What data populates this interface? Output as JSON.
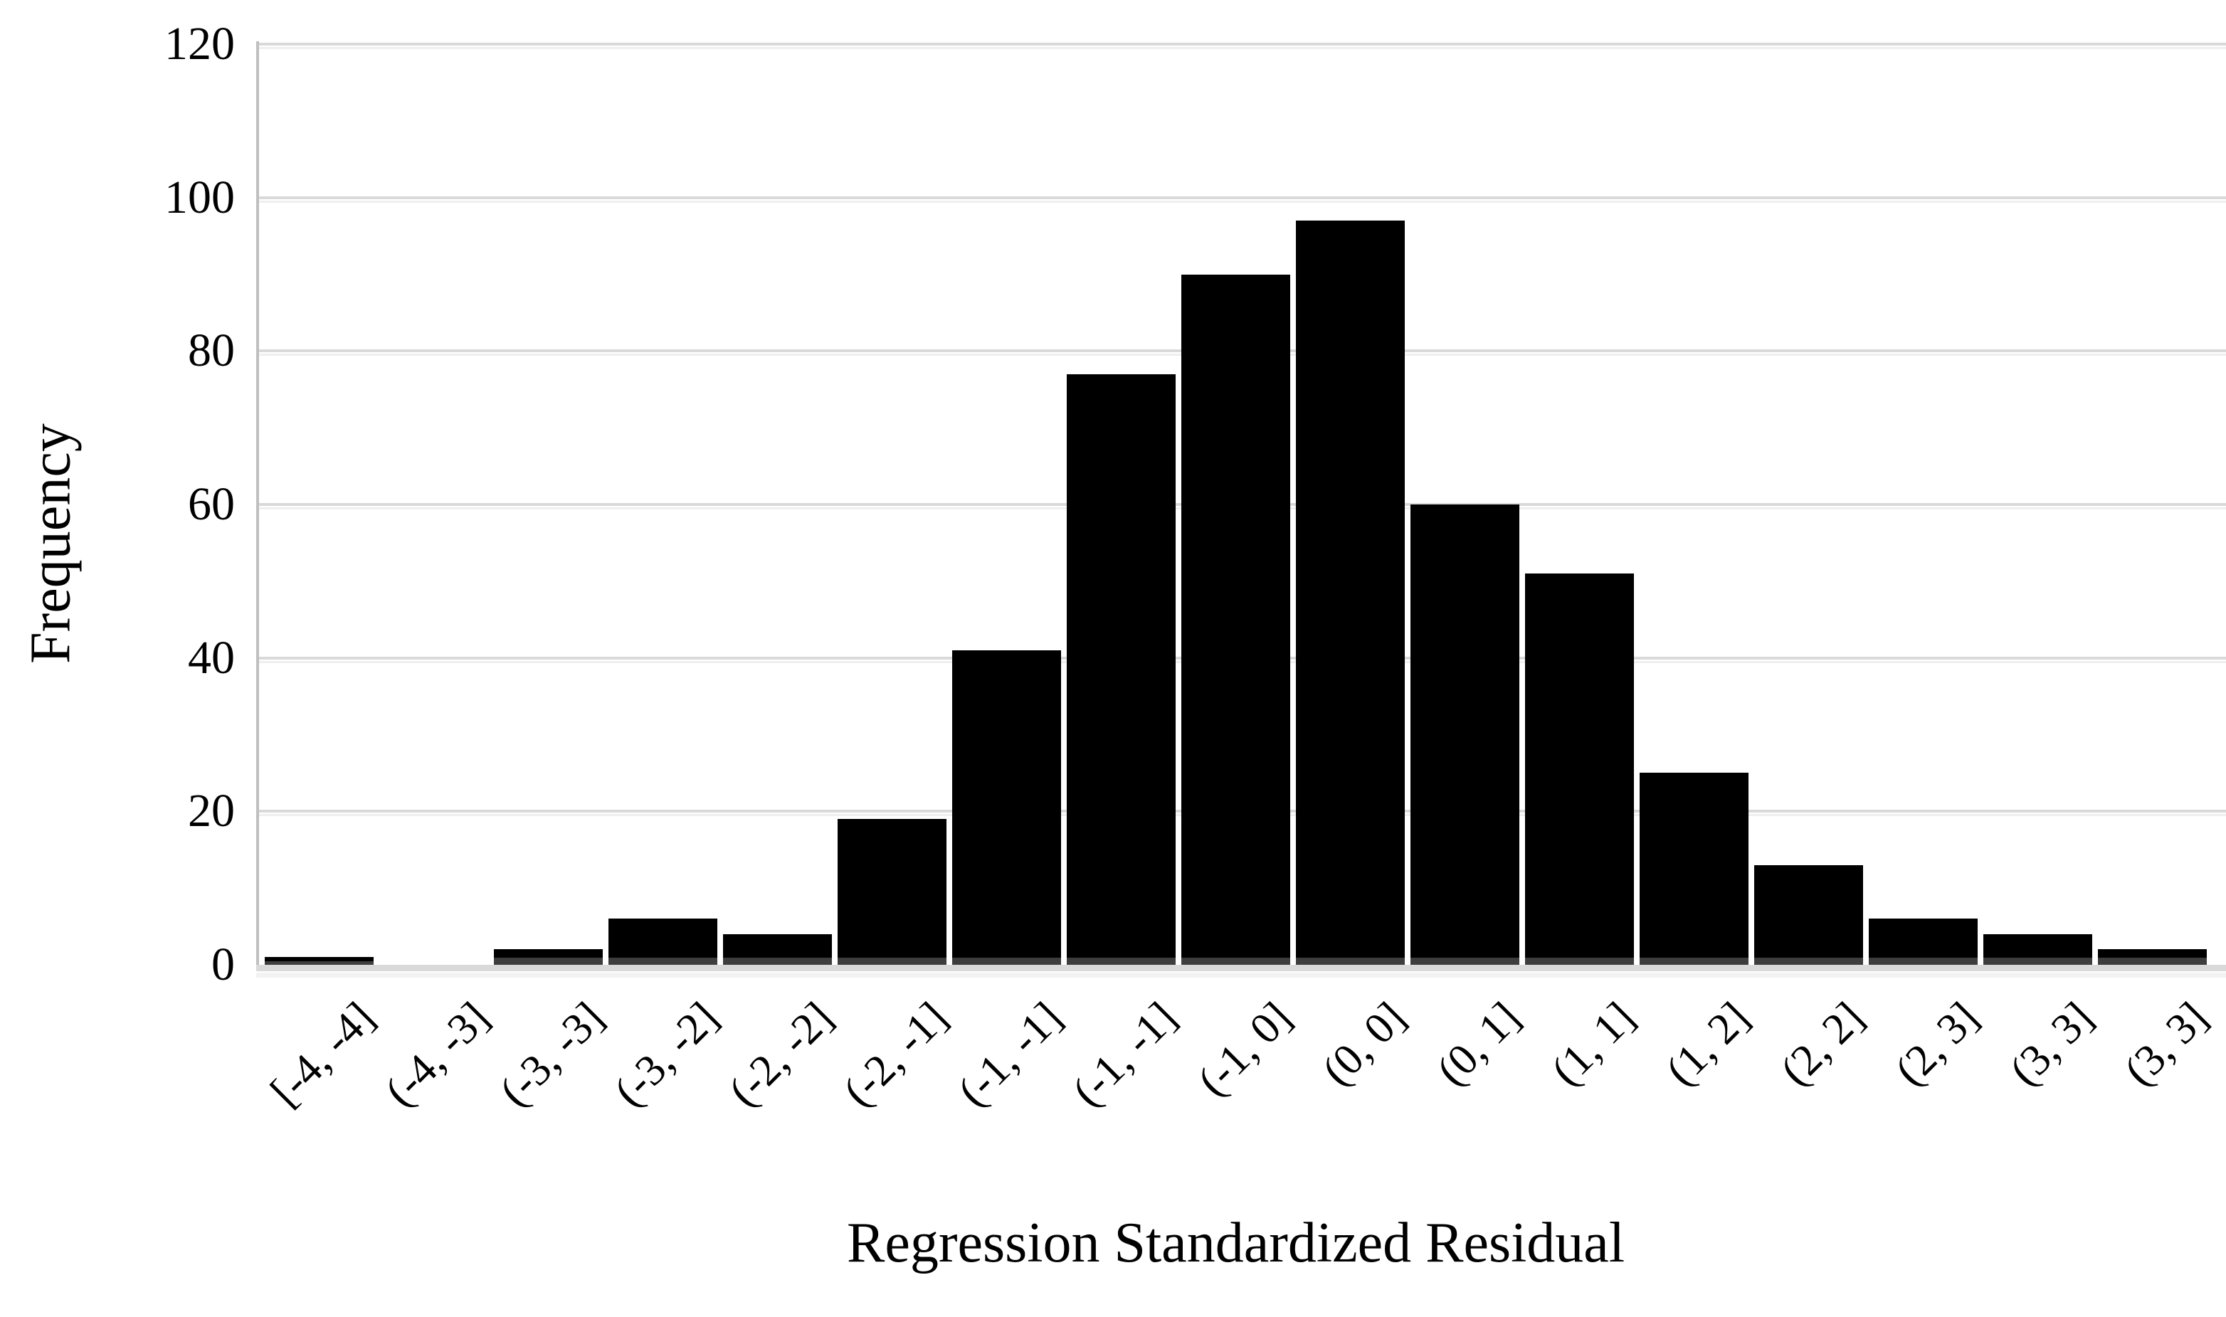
{
  "chart_data": {
    "type": "bar",
    "title": "",
    "xlabel": "Regression Standardized Residual",
    "ylabel": "Frequency",
    "categories": [
      "[-4, -4]",
      "(-4, -3]",
      "(-3, -3]",
      "(-3, -2]",
      "(-2, -2]",
      "(-2, -1]",
      "(-1, -1]",
      "(-1, -1]",
      "(-1, 0]",
      "(0, 0]",
      "(0, 1]",
      "(1, 1]",
      "(1, 2]",
      "(2, 2]",
      "(2, 3]",
      "(3, 3]",
      "(3, 3]"
    ],
    "values": [
      1,
      0,
      2,
      6,
      4,
      19,
      41,
      77,
      90,
      97,
      60,
      51,
      25,
      13,
      6,
      4,
      2
    ],
    "yticks": [
      0,
      20,
      40,
      60,
      80,
      100,
      120
    ],
    "ylim": [
      0,
      120
    ],
    "grid": "horizontal",
    "legend": "none",
    "bar_color": "#000000",
    "gridline_color": "#d9d9d9",
    "axis_line_color": "#bfbfbf",
    "x_label_rotation_deg": 45
  }
}
